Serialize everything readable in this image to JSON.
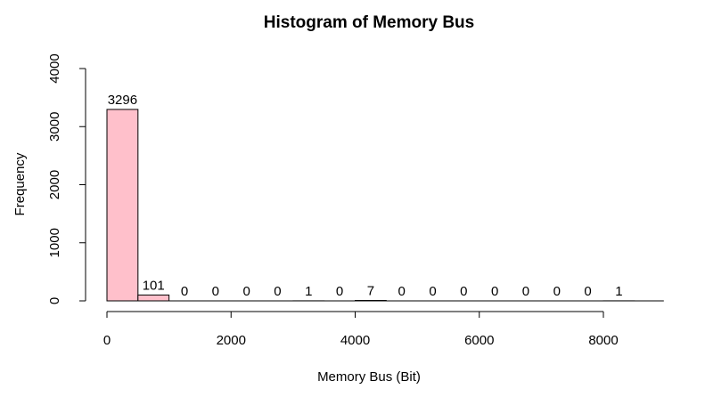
{
  "chart_data": {
    "type": "bar",
    "title": "Histogram of Memory Bus",
    "xlabel": "Memory Bus (Bit)",
    "ylabel": "Frequency",
    "bin_width": 500,
    "bins": [
      {
        "start": 0,
        "end": 500,
        "count": 3296
      },
      {
        "start": 500,
        "end": 1000,
        "count": 101
      },
      {
        "start": 1000,
        "end": 1500,
        "count": 0
      },
      {
        "start": 1500,
        "end": 2000,
        "count": 0
      },
      {
        "start": 2000,
        "end": 2500,
        "count": 0
      },
      {
        "start": 2500,
        "end": 3000,
        "count": 0
      },
      {
        "start": 3000,
        "end": 3500,
        "count": 1
      },
      {
        "start": 3500,
        "end": 4000,
        "count": 0
      },
      {
        "start": 4000,
        "end": 4500,
        "count": 7
      },
      {
        "start": 4500,
        "end": 5000,
        "count": 0
      },
      {
        "start": 5000,
        "end": 5500,
        "count": 0
      },
      {
        "start": 5500,
        "end": 6000,
        "count": 0
      },
      {
        "start": 6000,
        "end": 6500,
        "count": 0
      },
      {
        "start": 6500,
        "end": 7000,
        "count": 0
      },
      {
        "start": 7000,
        "end": 7500,
        "count": 0
      },
      {
        "start": 7500,
        "end": 8000,
        "count": 0
      },
      {
        "start": 8000,
        "end": 8500,
        "count": 1
      }
    ],
    "xlim": [
      0,
      8500
    ],
    "ylim": [
      0,
      4000
    ],
    "x_ticks": [
      0,
      2000,
      4000,
      6000,
      8000
    ],
    "x_tick_labels": [
      "0",
      "2000",
      "4000",
      "6000",
      "8000"
    ],
    "y_ticks": [
      0,
      1000,
      2000,
      3000,
      4000
    ],
    "y_tick_labels": [
      "0",
      "1000",
      "2000",
      "3000",
      "4000"
    ],
    "grid": false,
    "bar_fill": "#ffc0cb",
    "bar_stroke": "#000000"
  }
}
